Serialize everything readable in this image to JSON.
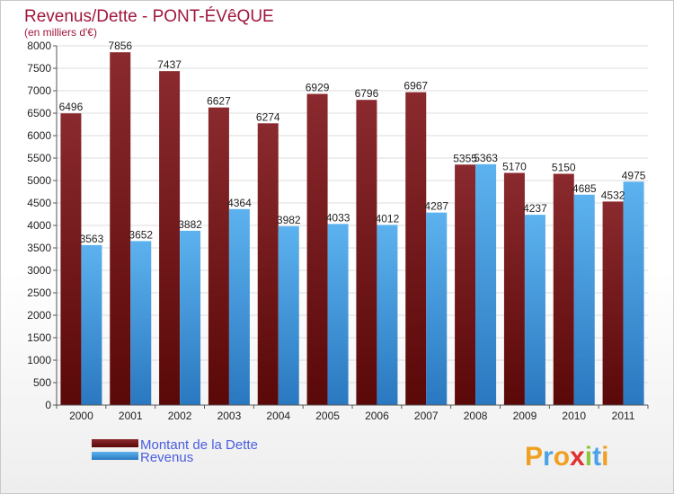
{
  "chart_data": {
    "type": "bar",
    "title": "Revenus/Dette - PONT-ÉVêQUE",
    "subtitle": "(en milliers d'€)",
    "xlabel": "",
    "ylabel": "",
    "ylim": [
      0,
      8000
    ],
    "yticks": [
      0,
      500,
      1000,
      1500,
      2000,
      2500,
      3000,
      3500,
      4000,
      4500,
      5000,
      5500,
      6000,
      6500,
      7000,
      7500,
      8000
    ],
    "grid": true,
    "legend_position": "bottom-left",
    "categories": [
      "2000",
      "2001",
      "2002",
      "2003",
      "2004",
      "2005",
      "2006",
      "2007",
      "2008",
      "2009",
      "2010",
      "2011"
    ],
    "series": [
      {
        "name": "Montant de la Dette",
        "color": "#7a1a1e",
        "values": [
          6496,
          7856,
          7437,
          6627,
          6274,
          6929,
          6796,
          6967,
          5355,
          5170,
          5150,
          4532
        ]
      },
      {
        "name": "Revenus",
        "color": "#4aa3e6",
        "values": [
          3563,
          3652,
          3882,
          4364,
          3982,
          4033,
          4012,
          4287,
          5363,
          4237,
          4685,
          4975
        ]
      }
    ]
  },
  "logo": {
    "letters": [
      "P",
      "r",
      "o",
      "x",
      "i",
      "t",
      "i"
    ],
    "colors": [
      "#f0a020",
      "#4aa3e6",
      "#f0a020",
      "#e03030",
      "#8cc63f",
      "#4aa3e6",
      "#f0a020"
    ]
  }
}
